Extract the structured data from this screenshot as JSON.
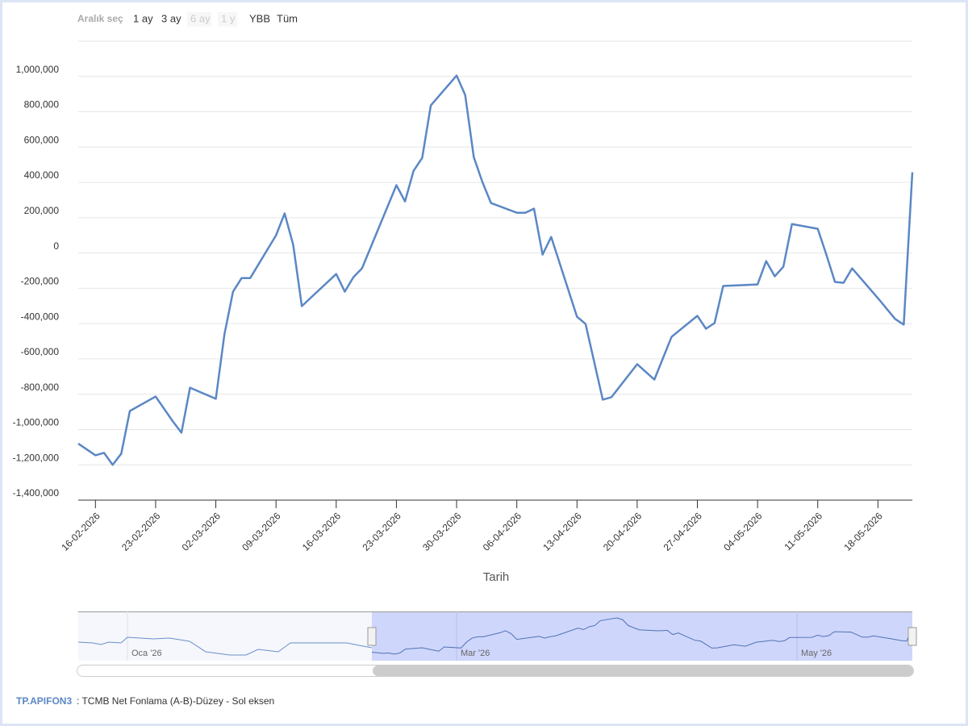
{
  "chart_data": {
    "type": "line",
    "range_selector": {
      "label": "Aralık seç",
      "buttons": [
        "1 ay",
        "3 ay",
        "6 ay",
        "1 y",
        "YBB",
        "Tüm"
      ]
    },
    "x_label": "Tarih",
    "x": [
      "14-02-2026",
      "16-02-2026",
      "17-02-2026",
      "18-02-2026",
      "19-02-2026",
      "20-02-2026",
      "23-02-2026",
      "25-02-2026",
      "26-02-2026",
      "27-02-2026",
      "02-03-2026",
      "03-03-2026",
      "04-03-2026",
      "05-03-2026",
      "06-03-2026",
      "09-03-2026",
      "10-03-2026",
      "11-03-2026",
      "12-03-2026",
      "16-03-2026",
      "17-03-2026",
      "18-03-2026",
      "19-03-2026",
      "23-03-2026",
      "24-03-2026",
      "25-03-2026",
      "26-03-2026",
      "27-03-2026",
      "30-03-2026",
      "31-03-2026",
      "01-04-2026",
      "02-04-2026",
      "03-04-2026",
      "06-04-2026",
      "07-04-2026",
      "08-04-2026",
      "09-04-2026",
      "10-04-2026",
      "13-04-2026",
      "14-04-2026",
      "16-04-2026",
      "17-04-2026",
      "20-04-2026",
      "22-04-2026",
      "24-04-2026",
      "27-04-2026",
      "28-04-2026",
      "29-04-2026",
      "30-04-2026",
      "04-05-2026",
      "05-05-2026",
      "06-05-2026",
      "07-05-2026",
      "08-05-2026",
      "11-05-2026",
      "12-05-2026",
      "13-05-2026",
      "14-05-2026",
      "15-05-2026",
      "18-05-2026",
      "20-05-2026",
      "21-05-2026",
      "22-05-2026"
    ],
    "series": [
      {
        "name": "TP.APIFON3",
        "color": "#5b87c5",
        "values": [
          -1080000,
          -1146000,
          -1132000,
          -1200000,
          -1137000,
          -895000,
          -813000,
          -954000,
          -1018000,
          -763000,
          -826000,
          -461000,
          -219000,
          -142000,
          -142000,
          100000,
          224000,
          46000,
          -301000,
          -119000,
          -219000,
          -137000,
          -87000,
          384000,
          292000,
          466000,
          539000,
          836000,
          1005000,
          895000,
          543000,
          402000,
          283000,
          228000,
          228000,
          251000,
          -9000,
          91000,
          -361000,
          -402000,
          -831000,
          -817000,
          -630000,
          -717000,
          -475000,
          -356000,
          -429000,
          -397000,
          -187000,
          -178000,
          -46000,
          -132000,
          -78000,
          164000,
          137000,
          -9000,
          -164000,
          -169000,
          -87000,
          -256000,
          -374000,
          -406000,
          457000
        ]
      }
    ],
    "legend_desc": ": TCMB Net Fonlama (A-B)-Düzey - Sol eksen",
    "xlim": [
      "14-02-2026",
      "22-05-2026"
    ],
    "xticks": [
      "16-02-2026",
      "23-02-2026",
      "02-03-2026",
      "09-03-2026",
      "16-03-2026",
      "23-03-2026",
      "30-03-2026",
      "06-04-2026",
      "13-04-2026",
      "20-04-2026",
      "27-04-2026",
      "04-05-2026",
      "11-05-2026",
      "18-05-2026"
    ],
    "ylim": [
      -1400000,
      1200000
    ],
    "yticks": [
      {
        "value": -1400000,
        "label": "-1,400,000"
      },
      {
        "value": -1200000,
        "label": "-1,200,000"
      },
      {
        "value": -1000000,
        "label": "-1,000,000"
      },
      {
        "value": -800000,
        "label": "-800,000"
      },
      {
        "value": -600000,
        "label": "-600,000"
      },
      {
        "value": -400000,
        "label": "-400,000"
      },
      {
        "value": -200000,
        "label": "-200,000"
      },
      0,
      {
        "value": 200000,
        "label": "200,000"
      },
      {
        "value": 400000,
        "label": "400,000"
      },
      {
        "value": 600000,
        "label": "600,000"
      },
      {
        "value": 800000,
        "label": "800,000"
      },
      {
        "value": 1000000,
        "label": "1,000,000"
      }
    ],
    "grid": true,
    "navigator_labels": [
      "Oca '26",
      "Mar '26",
      "May '26"
    ]
  }
}
